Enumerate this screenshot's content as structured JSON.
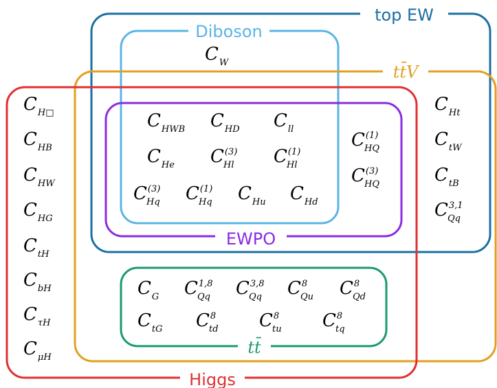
{
  "regions": {
    "top_ew": {
      "label": "top EW",
      "color": "#1a6fa3"
    },
    "diboson": {
      "label": "Diboson",
      "color": "#5ab4e5"
    },
    "ttv": {
      "label": "tt̄V",
      "color": "#e0a020"
    },
    "higgs": {
      "label": "Higgs",
      "color": "#e03030"
    },
    "ewpo": {
      "label": "EWPO",
      "color": "#8a2be2"
    },
    "tt": {
      "label": "tt̄",
      "color": "#1a9a6a"
    }
  },
  "coefficients": {
    "diboson_only": [
      {
        "base": "C",
        "sub": "W"
      }
    ],
    "higgs_only": [
      {
        "base": "C",
        "sub": "H□"
      },
      {
        "base": "C",
        "sub": "HB"
      },
      {
        "base": "C",
        "sub": "HW"
      },
      {
        "base": "C",
        "sub": "HG"
      },
      {
        "base": "C",
        "sub": "tH"
      },
      {
        "base": "C",
        "sub": "bH"
      },
      {
        "base": "C",
        "sub": "τH"
      },
      {
        "base": "C",
        "sub": "μH"
      }
    ],
    "top_ew_right": [
      {
        "base": "C",
        "sub": "Ht"
      },
      {
        "base": "C",
        "sub": "tW"
      },
      {
        "base": "C",
        "sub": "tB"
      },
      {
        "base": "C",
        "sub": "Qq",
        "sup": "3,1"
      }
    ],
    "ewpo_grid": [
      {
        "base": "C",
        "sub": "HWB"
      },
      {
        "base": "C",
        "sub": "HD"
      },
      {
        "base": "C",
        "sub": "ll"
      },
      {
        "base": "C",
        "sub": "He"
      },
      {
        "base": "C",
        "sub": "Hl",
        "sup": "(3)"
      },
      {
        "base": "C",
        "sub": "Hl",
        "sup": "(1)"
      },
      {
        "base": "C",
        "sub": "Hq",
        "sup": "(3)"
      },
      {
        "base": "C",
        "sub": "Hq",
        "sup": "(1)"
      },
      {
        "base": "C",
        "sub": "Hu"
      },
      {
        "base": "C",
        "sub": "Hd"
      }
    ],
    "ewpo_right": [
      {
        "base": "C",
        "sub": "HQ",
        "sup": "(1)"
      },
      {
        "base": "C",
        "sub": "HQ",
        "sup": "(3)"
      }
    ],
    "tt_grid": [
      {
        "base": "C",
        "sub": "G"
      },
      {
        "base": "C",
        "sub": "Qq",
        "sup": "1,8"
      },
      {
        "base": "C",
        "sub": "Qq",
        "sup": "3,8"
      },
      {
        "base": "C",
        "sub": "Qu",
        "sup": "8"
      },
      {
        "base": "C",
        "sub": "Qd",
        "sup": "8"
      },
      {
        "base": "C",
        "sub": "tG"
      },
      {
        "base": "C",
        "sub": "td",
        "sup": "8"
      },
      {
        "base": "C",
        "sub": "tu",
        "sup": "8"
      },
      {
        "base": "C",
        "sub": "tq",
        "sup": "8"
      }
    ]
  }
}
